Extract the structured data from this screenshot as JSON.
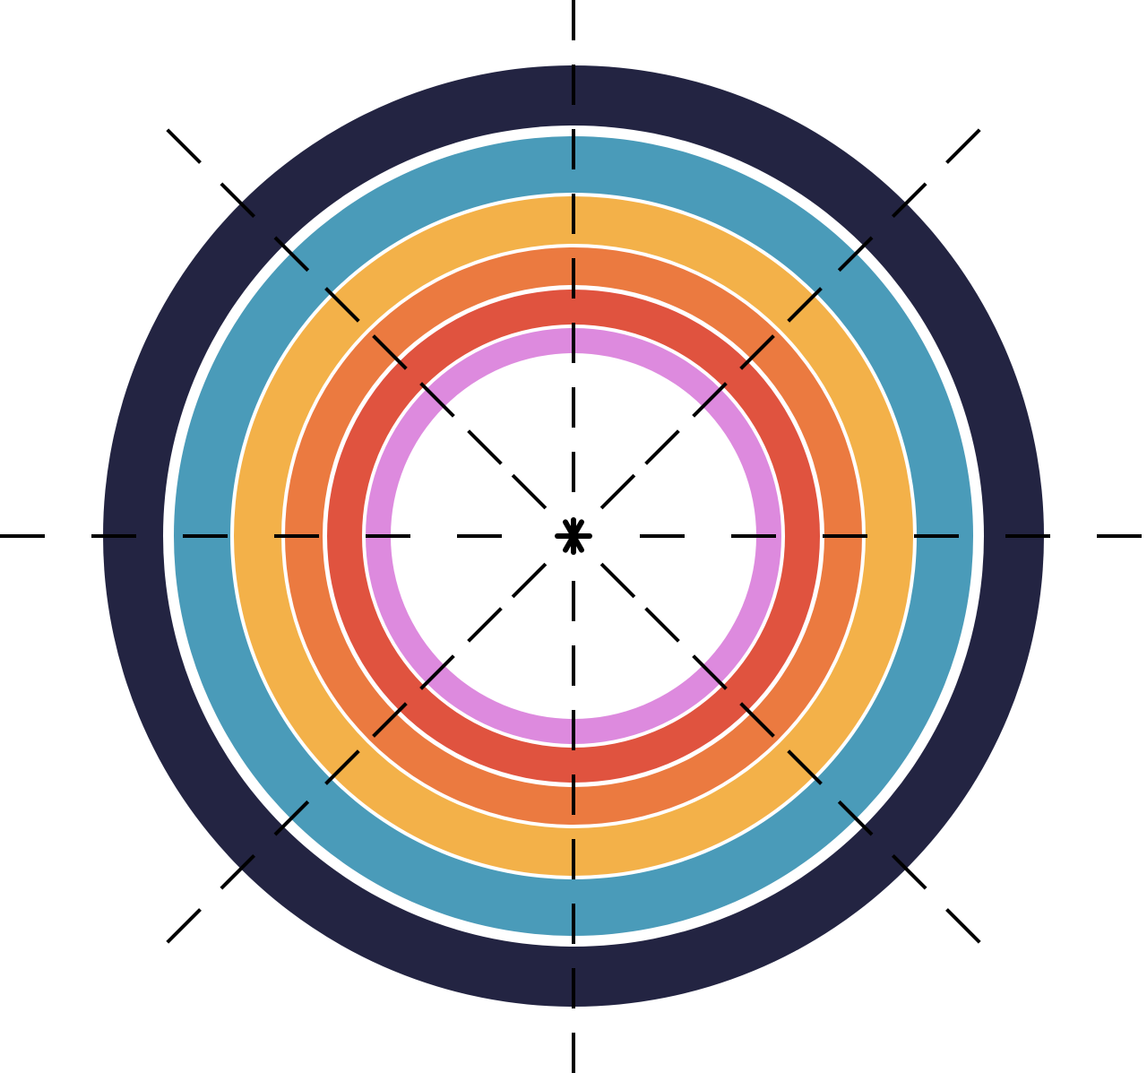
{
  "target": {
    "rings": [
      {
        "name": "outer-ring",
        "color": "#232442"
      },
      {
        "name": "blue-ring",
        "color": "#4A9BB9"
      },
      {
        "name": "yellow-ring",
        "color": "#F3B149"
      },
      {
        "name": "orange-ring",
        "color": "#EB7A40"
      },
      {
        "name": "red-ring",
        "color": "#E0533F"
      },
      {
        "name": "pink-ring",
        "color": "#DD8ADE"
      }
    ],
    "separator_color": "#FFFFFF",
    "background_color": "#FFFFFF",
    "crosshair_color": "#000000",
    "center_marker_icon": "asterisk-icon"
  }
}
